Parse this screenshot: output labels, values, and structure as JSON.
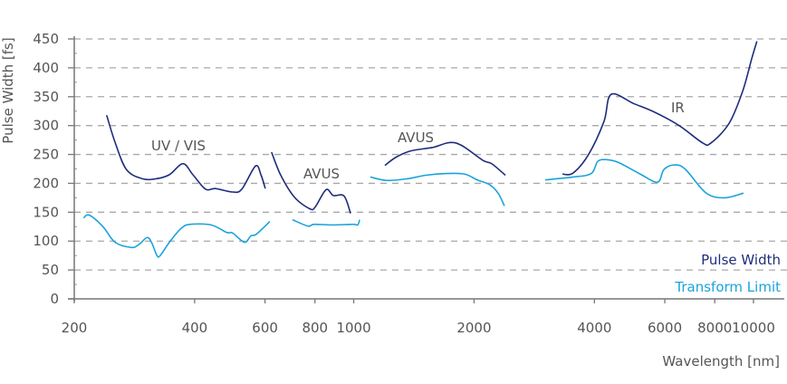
{
  "chart_data": {
    "type": "line",
    "title": "",
    "xlabel": "Wavelength [nm]",
    "ylabel": "Pulse Width [fs]",
    "xscale": "log",
    "xlim": [
      200,
      10000
    ],
    "ylim": [
      0,
      450
    ],
    "grid": "horizontal dashed",
    "legend_placement": "bottom-right",
    "x_ticks": [
      200,
      400,
      600,
      800,
      1000,
      2000,
      4000,
      6000,
      8000,
      10000
    ],
    "x_tick_labels": [
      "200",
      "400",
      "600",
      "800",
      "1000",
      "2000",
      "4000",
      "6000",
      "8000",
      "10000"
    ],
    "y_ticks": [
      0,
      50,
      100,
      150,
      200,
      250,
      300,
      350,
      400,
      450
    ],
    "y_tick_labels": [
      "0",
      "50",
      "100",
      "150",
      "200",
      "250",
      "300",
      "350",
      "400",
      "450"
    ],
    "colors": {
      "pulse_width": "#1f2d7b",
      "transform_limit": "#1aa3dc",
      "text": "#555555",
      "grid": "#a8a8a8"
    },
    "legend": [
      "Pulse Width",
      "Transform Limit"
    ],
    "annotations": [
      "UV / VIS",
      "AVUS",
      "AVUS",
      "IR"
    ],
    "series": [
      {
        "name": "Pulse Width",
        "segment": "UV / VIS",
        "x": [
          241,
          253,
          270,
          296,
          321,
          346,
          374,
          396,
          426,
          451,
          498,
          525,
          568,
          586,
          601
        ],
        "y": [
          318,
          271,
          224,
          208,
          208,
          215,
          234,
          215,
          190,
          191,
          185,
          190,
          230,
          215,
          191
        ]
      },
      {
        "name": "Transform Limit",
        "segment": "UV / VIS",
        "x": [
          211,
          218,
          236,
          253,
          278,
          290,
          304,
          312,
          322,
          328,
          346,
          370,
          390,
          440,
          481,
          498,
          533,
          553,
          571,
          617
        ],
        "y": [
          140,
          145,
          125,
          98,
          89,
          94,
          106,
          98,
          75,
          75,
          98,
          122,
          129,
          128,
          115,
          114,
          98,
          109,
          112,
          134
        ]
      },
      {
        "name": "Pulse Width",
        "segment": "AVUS",
        "x": [
          623,
          657,
          711,
          776,
          801,
          853,
          889,
          946,
          982
        ],
        "y": [
          254,
          214,
          176,
          156,
          159,
          189,
          179,
          178,
          148
        ]
      },
      {
        "name": "Transform Limit",
        "segment": "AVUS",
        "x": [
          703,
          768,
          796,
          884,
          997,
          1023,
          1035
        ],
        "y": [
          137,
          126,
          129,
          128,
          129,
          128,
          137
        ]
      },
      {
        "name": "Pulse Width",
        "segment": "AVUS (2)",
        "x": [
          1197,
          1274,
          1386,
          1571,
          1799,
          2103,
          2214,
          2396
        ],
        "y": [
          231,
          245,
          256,
          262,
          270,
          240,
          234,
          214
        ]
      },
      {
        "name": "Transform Limit",
        "segment": "AVUS (2)",
        "x": [
          1101,
          1210,
          1364,
          1515,
          1708,
          1895,
          2036,
          2183,
          2297,
          2382
        ],
        "y": [
          211,
          205,
          208,
          214,
          217,
          216,
          206,
          198,
          183,
          161
        ]
      },
      {
        "name": "Pulse Width",
        "segment": "IR",
        "x": [
          3329,
          3540,
          3868,
          4226,
          4406,
          5020,
          5665,
          6519,
          7462,
          7830,
          8690,
          9390,
          9900,
          10200
        ],
        "y": [
          216,
          218,
          250,
          307,
          354,
          338,
          323,
          300,
          270,
          270,
          304,
          359,
          416,
          446
        ]
      },
      {
        "name": "Transform Limit",
        "segment": "IR",
        "x": [
          3013,
          3540,
          3929,
          4077,
          4296,
          4600,
          5209,
          5754,
          5970,
          6350,
          6760,
          7620,
          8470,
          9440
        ],
        "y": [
          206,
          211,
          217,
          238,
          241,
          236,
          216,
          202,
          224,
          232,
          224,
          183,
          175,
          183
        ]
      }
    ]
  }
}
